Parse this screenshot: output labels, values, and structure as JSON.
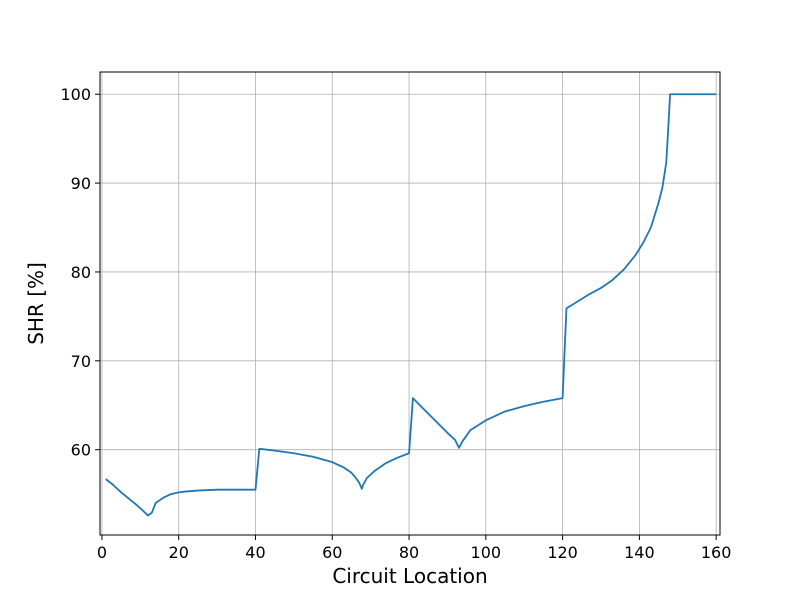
{
  "chart_data": {
    "type": "line",
    "title": "",
    "xlabel": "Circuit Location",
    "ylabel": "SHR [%]",
    "xlim": [
      -0.5,
      161
    ],
    "ylim": [
      50.4,
      102.5
    ],
    "xticks": [
      0,
      20,
      40,
      60,
      80,
      100,
      120,
      140,
      160
    ],
    "yticks": [
      60,
      70,
      80,
      90,
      100
    ],
    "grid": true,
    "line_color": "#1f77b4",
    "series": [
      {
        "x": [
          1,
          3,
          5,
          7,
          9,
          11,
          12,
          13,
          14,
          16,
          18,
          20,
          22,
          25,
          30,
          35,
          40,
          40.5,
          41,
          45,
          50,
          55,
          60,
          63,
          65,
          66,
          67,
          67.7,
          68,
          69,
          71,
          74,
          77,
          80,
          80.5,
          81,
          84,
          87,
          90,
          92,
          93,
          94,
          96,
          100,
          105,
          110,
          115,
          120,
          120.5,
          121,
          124,
          127,
          130,
          133,
          136,
          139,
          141,
          143,
          145,
          146,
          147,
          147.5,
          148,
          150,
          155,
          160
        ],
        "y": [
          56.7,
          56.0,
          55.2,
          54.5,
          53.8,
          53.0,
          52.6,
          52.9,
          54.0,
          54.6,
          55.0,
          55.2,
          55.3,
          55.4,
          55.5,
          55.5,
          55.5,
          57.8,
          60.1,
          59.9,
          59.6,
          59.2,
          58.6,
          58.0,
          57.4,
          56.9,
          56.3,
          55.6,
          56.0,
          56.8,
          57.6,
          58.5,
          59.1,
          59.6,
          62.6,
          65.8,
          64.5,
          63.2,
          61.9,
          61.1,
          60.2,
          61.0,
          62.2,
          63.3,
          64.3,
          64.9,
          65.4,
          65.8,
          70.9,
          75.9,
          76.7,
          77.5,
          78.2,
          79.1,
          80.3,
          81.9,
          83.3,
          85.0,
          87.8,
          89.5,
          92.3,
          96.0,
          100.0,
          100.0,
          100.0,
          100.0
        ]
      }
    ]
  }
}
